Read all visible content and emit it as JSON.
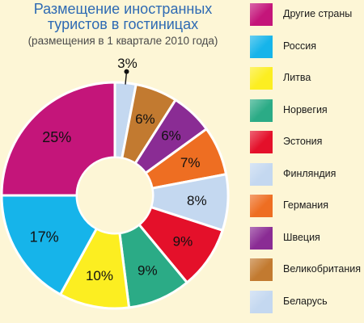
{
  "title": {
    "line1": "Размещение иностранных",
    "line2": "туристов в гостиницах",
    "line3": "(размещения в 1 квартале 2010 года)"
  },
  "chart_data": {
    "type": "pie",
    "variant": "donut",
    "unit": "%",
    "title": "Размещение иностранных туристов в гостиницах",
    "subtitle": "(размещения в 1 квартале 2010 года)",
    "legend_position": "right",
    "slices": [
      {
        "label": "Беларусь",
        "value": 3,
        "display": "3%",
        "color": "#c4d8f0"
      },
      {
        "label": "Великобритания",
        "value": 6,
        "display": "6%",
        "color": "#c27a30"
      },
      {
        "label": "Швеция",
        "value": 6,
        "display": "6%",
        "color": "#8a2c94"
      },
      {
        "label": "Германия",
        "value": 7,
        "display": "7%",
        "color": "#ee6e22"
      },
      {
        "label": "Финляндия",
        "value": 8,
        "display": "8%",
        "color": "#c4d8f0"
      },
      {
        "label": "Эстония",
        "value": 9,
        "display": "9%",
        "color": "#e4102a"
      },
      {
        "label": "Норвегия",
        "value": 9,
        "display": "9%",
        "color": "#2bab86"
      },
      {
        "label": "Литва",
        "value": 10,
        "display": "10%",
        "color": "#fcee21"
      },
      {
        "label": "Россия",
        "value": 17,
        "display": "17%",
        "color": "#16b4ea"
      },
      {
        "label": "Другие страны",
        "value": 25,
        "display": "25%",
        "color": "#c4157a"
      }
    ],
    "legend": [
      {
        "label": "Другие страны",
        "color": "#c4157a"
      },
      {
        "label": "Россия",
        "color": "#16b4ea"
      },
      {
        "label": "Литва",
        "color": "#fcee21"
      },
      {
        "label": "Норвегия",
        "color": "#2bab86"
      },
      {
        "label": "Эстония",
        "color": "#e4102a"
      },
      {
        "label": "Финляндия",
        "color": "#c4d8f0"
      },
      {
        "label": "Германия",
        "color": "#ee6e22"
      },
      {
        "label": "Швеция",
        "color": "#8a2c94"
      },
      {
        "label": "Великобритания",
        "color": "#c27a30"
      },
      {
        "label": "Беларусь",
        "color": "#c4d8f0"
      }
    ]
  }
}
